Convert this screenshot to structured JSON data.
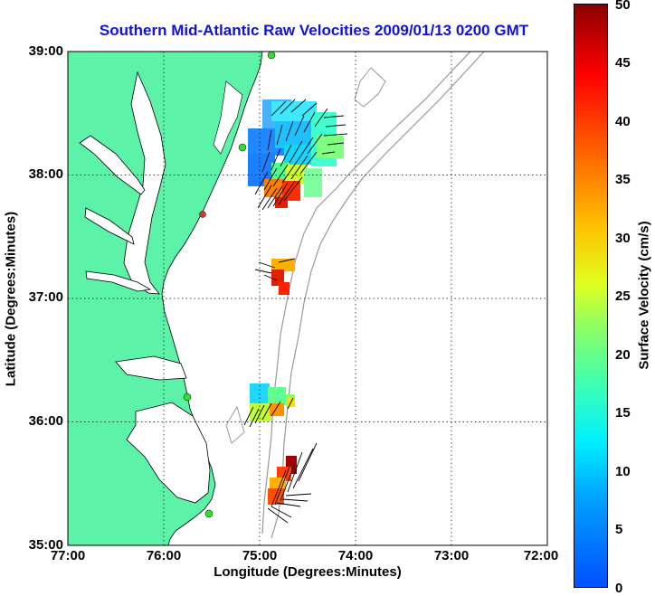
{
  "title": "Southern Mid-Atlantic Raw Velocities 2009/01/13 0200 GMT",
  "axes": {
    "xlabel": "Longitude (Degrees:Minutes)",
    "ylabel": "Latitude (Degrees:Minutes)",
    "xticks": [
      "77:00",
      "76:00",
      "75:00",
      "74:00",
      "73:00",
      "72:00"
    ],
    "yticks": [
      "39:00",
      "38:00",
      "37:00",
      "36:00",
      "35:00"
    ],
    "xlim_deg_west": [
      77,
      72
    ],
    "ylim_deg_north": [
      35,
      39
    ],
    "grid": "dotted"
  },
  "colorbar": {
    "label": "Surface Velocity (cm/s)",
    "ticks": [
      "50",
      "45",
      "40",
      "35",
      "30",
      "25",
      "20",
      "15",
      "10",
      "5",
      "0"
    ],
    "range": [
      0,
      50
    ],
    "colormap": "jet"
  },
  "colors": {
    "land": "#5cf2a8",
    "title": "#1010e0",
    "bathymetry": "#999999",
    "station_ok": "#33dd33",
    "station_alert": "#e03030"
  }
}
